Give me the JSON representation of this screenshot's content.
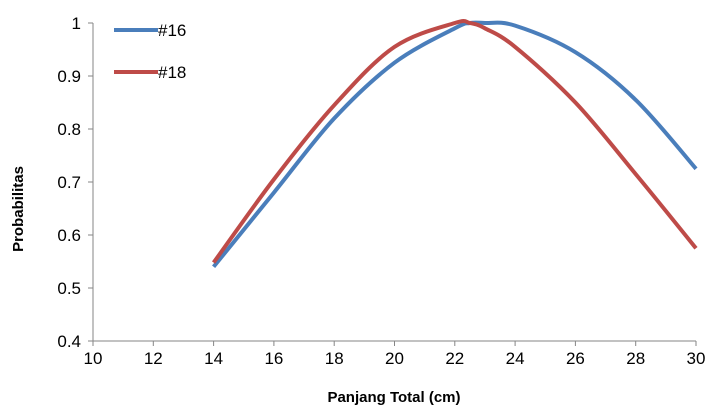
{
  "chart_data": {
    "type": "line",
    "title": "",
    "xlabel": "Panjang Total (cm)",
    "ylabel": "Probabilitas",
    "xlim": [
      10,
      30
    ],
    "ylim": [
      0.4,
      1.0
    ],
    "x_ticks": [
      "10",
      "12",
      "14",
      "16",
      "18",
      "20",
      "22",
      "24",
      "26",
      "28",
      "30"
    ],
    "y_ticks": [
      "0.4",
      "0.5",
      "0.6",
      "0.7",
      "0.8",
      "0.9",
      "1"
    ],
    "grid": false,
    "legend": "top-left",
    "x": [
      14,
      16,
      18,
      20,
      22,
      22.5,
      23,
      24,
      26,
      28,
      30
    ],
    "series": [
      {
        "name": "#16",
        "color": "#4A7EBB",
        "values": [
          0.54,
          0.68,
          0.82,
          0.925,
          0.99,
          1.0,
          1.0,
          0.995,
          0.945,
          0.855,
          0.725
        ]
      },
      {
        "name": "#18",
        "color": "#BE4B48",
        "values": [
          0.548,
          0.705,
          0.845,
          0.955,
          1.0,
          1.0,
          0.99,
          0.955,
          0.85,
          0.715,
          0.575
        ]
      }
    ]
  }
}
